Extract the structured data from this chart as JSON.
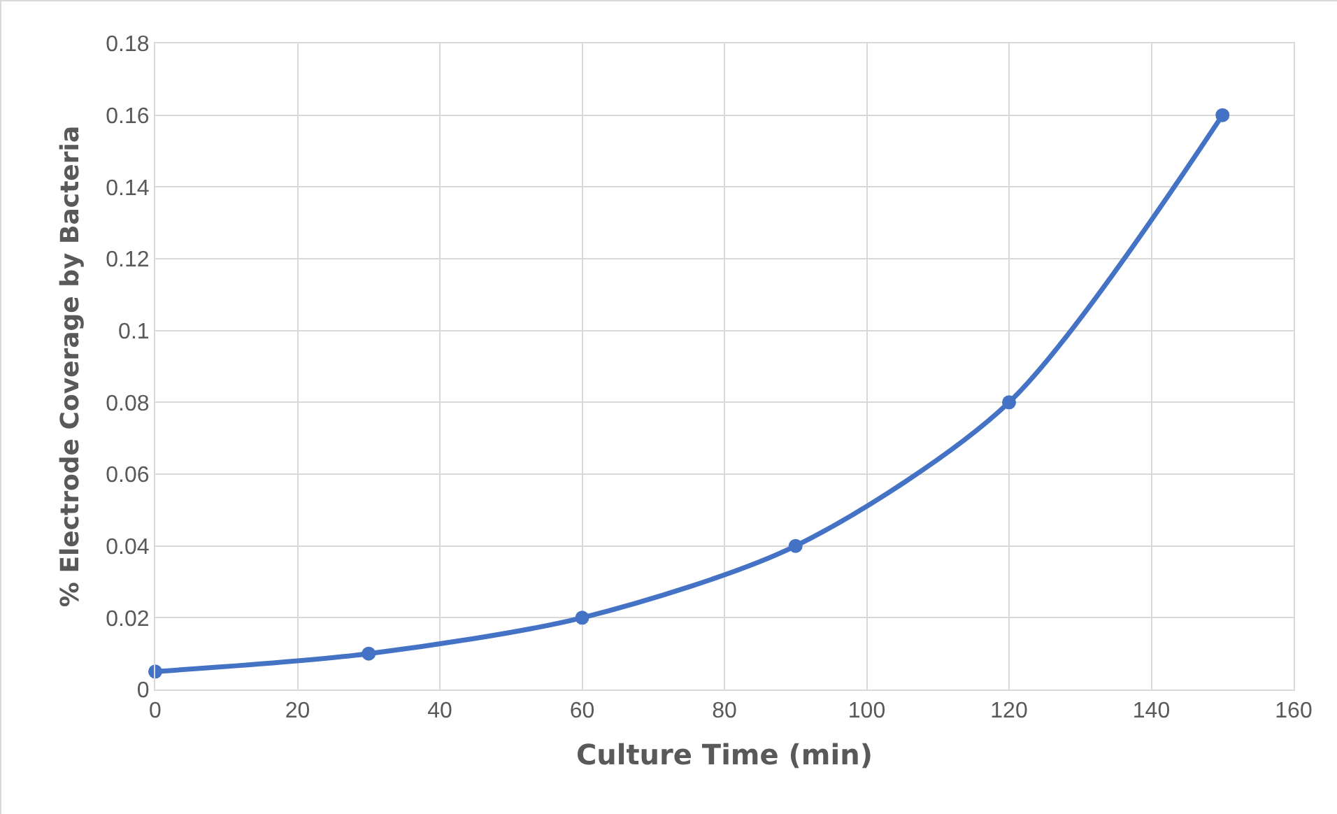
{
  "chart_data": {
    "type": "line",
    "xlabel": "Culture Time (min)",
    "ylabel": "% Electrode Coverage by Bacteria",
    "x": [
      0,
      30,
      60,
      90,
      120,
      150
    ],
    "series": [
      {
        "color": "#4472c4",
        "values": [
          0.005,
          0.01,
          0.02,
          0.04,
          0.08,
          0.16
        ]
      }
    ],
    "xlim": [
      0,
      160
    ],
    "xticks": [
      0,
      20,
      40,
      60,
      80,
      100,
      120,
      140,
      160
    ],
    "ylim": [
      0,
      0.18
    ],
    "yticks": [
      0,
      0.02,
      0.04,
      0.06,
      0.08,
      {
        "value": 0.1,
        "label": "0.1"
      },
      0.12,
      0.14,
      0.16,
      0.18
    ],
    "grid": true,
    "marker": "circle",
    "line_style": "solid"
  }
}
